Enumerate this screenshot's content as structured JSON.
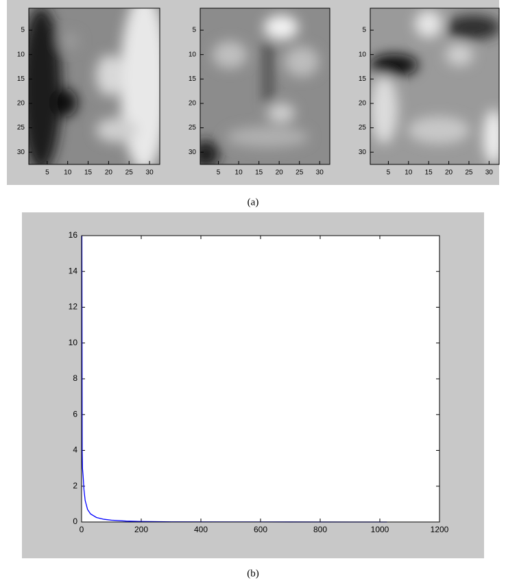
{
  "chart_data": [
    {
      "type": "image",
      "xlim": [
        0.5,
        32.5
      ],
      "ylim": [
        0.5,
        32.5
      ],
      "yreverse": true,
      "xticks": [
        5,
        10,
        15,
        20,
        25,
        30
      ],
      "yticks": [
        5,
        10,
        15,
        20,
        25,
        30
      ]
    },
    {
      "type": "image",
      "xlim": [
        0.5,
        32.5
      ],
      "ylim": [
        0.5,
        32.5
      ],
      "yreverse": true,
      "xticks": [
        5,
        10,
        15,
        20,
        25,
        30
      ],
      "yticks": [
        5,
        10,
        15,
        20,
        25,
        30
      ]
    },
    {
      "type": "image",
      "xlim": [
        0.5,
        32.5
      ],
      "ylim": [
        0.5,
        32.5
      ],
      "yreverse": true,
      "xticks": [
        5,
        10,
        15,
        20,
        25,
        30
      ],
      "yticks": [
        5,
        10,
        15,
        20,
        25,
        30
      ]
    },
    {
      "type": "line",
      "color": "#0000ff",
      "x": [
        1,
        2,
        3,
        5,
        8,
        12,
        20,
        30,
        50,
        75,
        100,
        150,
        200,
        300,
        500,
        700,
        1024
      ],
      "values": [
        16,
        4,
        3,
        2.6,
        1.8,
        1.2,
        0.7,
        0.45,
        0.25,
        0.15,
        0.1,
        0.05,
        0.03,
        0.01,
        0.005,
        0.002,
        0
      ],
      "xlim": [
        0,
        1200
      ],
      "ylim": [
        0,
        16
      ],
      "xticks": [
        0,
        200,
        400,
        600,
        800,
        1000,
        1200
      ],
      "yticks": [
        0,
        2,
        4,
        6,
        8,
        10,
        12,
        14,
        16
      ]
    }
  ],
  "captions": [
    "(a)",
    "(b)"
  ]
}
